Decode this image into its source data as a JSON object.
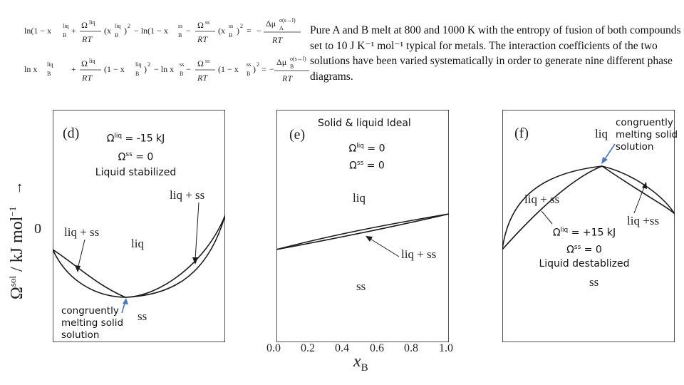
{
  "equations": {
    "eq1": {
      "ln_term": "ln(1 − x",
      "B_liq_sup": "liq",
      "B_sub": "B",
      "omega_liq": "Ω",
      "liq": "liq",
      "RT": "RT",
      "x_liq": "(x",
      "sq": ")",
      "two": "2",
      "minus_ln": "− ln(1 − x",
      "ss": "ss",
      "omega_ss": "Ω",
      "dmu": "Δμ",
      "A_sub": "A",
      "dmu_sup": "o(s→l)",
      "eq": "=",
      "minus": "−",
      "plus": "+"
    },
    "eq2": {
      "ln_term": "ln x",
      "liq": "liq",
      "B_sub": "B",
      "omega_liq": "Ω",
      "RT": "RT",
      "one_minus": "(1 − x",
      "two": "2",
      "minus_ln": "− ln x",
      "ss": "ss",
      "omega_ss": "Ω",
      "dmu": "Δμ",
      "B_sub2": "B",
      "dmu_sup": "o(s→l)",
      "eq": "=",
      "minus": "−",
      "plus": "+"
    }
  },
  "description": "Pure A and B melt at 800 and 1000 K with the entropy of fusion of both compounds set to 10 J K⁻¹ mol⁻¹ typical for metals. The interaction coefficients of the two solutions have been varied systematically in order to generate nine different phase diagrams.",
  "y_axis_label": "Ω",
  "y_axis_sup": "sol",
  "y_axis_rest": " / kJ mol",
  "y_axis_exp": "−1",
  "y_axis_arrow": "→",
  "y_zero": "0",
  "x_axis_label": "x",
  "x_axis_sub": "B",
  "x_ticks": [
    "0.0",
    "0.2",
    "0.4",
    "0.6",
    "0.8",
    "1.0"
  ],
  "panels": {
    "d": {
      "letter": "(d)",
      "omega_liq": "Ω",
      "liq_sup": "liq",
      "liq_val": " = -15 kJ",
      "omega_ss": "Ω",
      "ss_sup": "ss",
      "ss_val": " = 0",
      "note": "Liquid stabilized",
      "lbl_liq_ss_right": "liq + ss",
      "lbl_liq_ss_left": "liq + ss",
      "lbl_liq": "liq",
      "lbl_ss": "ss",
      "congruent_1": "congruently",
      "congruent_2": "melting solid",
      "congruent_3": "solution"
    },
    "e": {
      "letter": "(e)",
      "title": "Solid & liquid Ideal",
      "omega_liq": "Ω",
      "liq_sup": "liq",
      "liq_val": " = 0",
      "omega_ss": "Ω",
      "ss_sup": "ss",
      "ss_val": " = 0",
      "lbl_liq": "liq",
      "lbl_liq_ss": "liq + ss",
      "lbl_ss": "ss"
    },
    "f": {
      "letter": "(f)",
      "lbl_liq": "liq",
      "congruent_1": "congruently",
      "congruent_2": "melting solid",
      "congruent_3": "solution",
      "lbl_liq_ss_left": "liq + ss",
      "lbl_liq_ss_right": "liq +ss",
      "omega_liq": "Ω",
      "liq_sup": "liq",
      "liq_val": " = +15 kJ",
      "omega_ss": "Ω",
      "ss_sup": "ss",
      "ss_val": " = 0",
      "note": "Liquid destablized",
      "lbl_ss": "ss"
    }
  },
  "colors": {
    "arrow_blue": "#4a78b8",
    "line": "#1a1a1a"
  }
}
